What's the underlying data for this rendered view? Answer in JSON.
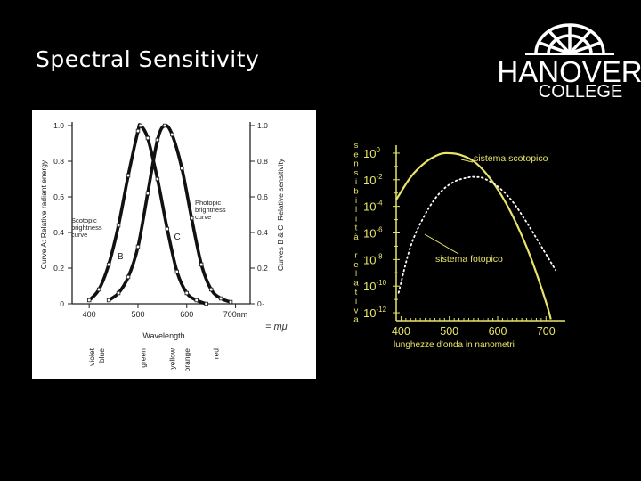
{
  "slide": {
    "title": "Spectral Sensitivity"
  },
  "logo": {
    "line1": "HANOVER",
    "line2": "COLLEGE"
  },
  "chart_data": [
    {
      "type": "line",
      "xlabel": "Wavelength",
      "ylabel_left": "Curve A: Relative radiant energy",
      "ylabel_right": "Curves B & C: Relative sensitivity",
      "x_ticks": [
        "400",
        "500",
        "600",
        "700nm"
      ],
      "y_ticks_left": [
        "0",
        "0.2",
        "0.4",
        "0.6",
        "0.8",
        "1.0"
      ],
      "y_ticks_right": [
        "0·",
        "0.2",
        "0.4",
        "0.6",
        "0.8",
        "1.0"
      ],
      "xlim": [
        365,
        730
      ],
      "ylim": [
        0,
        1.0
      ],
      "handwritten_note": "= mμ",
      "color_labels": [
        {
          "label": "violet",
          "x": 405
        },
        {
          "label": "blue",
          "x": 425
        },
        {
          "label": "green",
          "x": 510
        },
        {
          "label": "yellow",
          "x": 570
        },
        {
          "label": "orange",
          "x": 600
        },
        {
          "label": "red",
          "x": 660
        }
      ],
      "series": [
        {
          "label_letter": "B",
          "label_text": "Scotopic brightness curve",
          "peak": 505,
          "x": [
            400,
            420,
            440,
            460,
            480,
            500,
            505,
            520,
            540,
            560,
            580,
            600,
            620,
            640
          ],
          "y": [
            0.02,
            0.08,
            0.22,
            0.44,
            0.72,
            0.97,
            1.0,
            0.93,
            0.7,
            0.42,
            0.18,
            0.06,
            0.02,
            0.0
          ]
        },
        {
          "label_letter": "C",
          "label_text": "Photopic brightness curve",
          "peak": 555,
          "x": [
            440,
            460,
            480,
            500,
            520,
            540,
            555,
            570,
            590,
            610,
            630,
            650,
            670,
            690
          ],
          "y": [
            0.02,
            0.06,
            0.15,
            0.32,
            0.62,
            0.92,
            1.0,
            0.95,
            0.76,
            0.48,
            0.22,
            0.08,
            0.03,
            0.01
          ]
        }
      ]
    },
    {
      "type": "line",
      "xlabel": "lunghezze d'onda in nanometri",
      "ylabel": "sensibilità relativa",
      "ylabel_letters": [
        "s",
        "e",
        "n",
        "s",
        "i",
        "b",
        "i",
        "l",
        "i",
        "t",
        "à",
        "",
        "r",
        "e",
        "l",
        "a",
        "t",
        "i",
        "v",
        "a"
      ],
      "x_ticks": [
        "400",
        "500",
        "600",
        "700"
      ],
      "y_ticks": [
        {
          "base": "10",
          "exp": "0"
        },
        {
          "base": "10",
          "exp": "-2"
        },
        {
          "base": "10",
          "exp": "-4"
        },
        {
          "base": "10",
          "exp": "-6"
        },
        {
          "base": "10",
          "exp": "-8"
        },
        {
          "base": "10",
          "exp": "-10"
        },
        {
          "base": "10",
          "exp": "-12"
        }
      ],
      "xlim": [
        390,
        740
      ],
      "ylim": [
        -12.6,
        0.6
      ],
      "y_scale": "log",
      "series": [
        {
          "name": "sistema scotopico",
          "x": [
            390,
            420,
            450,
            480,
            500,
            520,
            550,
            580,
            610,
            640,
            670,
            700,
            710
          ],
          "y": [
            -3.5,
            -1.8,
            -0.7,
            -0.08,
            0.0,
            -0.1,
            -0.6,
            -1.7,
            -3.3,
            -5.4,
            -8.0,
            -11.2,
            -12.5
          ]
        },
        {
          "name": "sistema fotopico",
          "style": "dotted",
          "x": [
            395,
            420,
            450,
            480,
            510,
            540,
            555,
            570,
            600,
            630,
            660,
            690,
            720
          ],
          "y": [
            -10.5,
            -7.0,
            -4.6,
            -3.0,
            -2.15,
            -1.82,
            -1.8,
            -1.88,
            -2.5,
            -3.6,
            -5.2,
            -7.0,
            -8.8
          ]
        }
      ]
    }
  ]
}
